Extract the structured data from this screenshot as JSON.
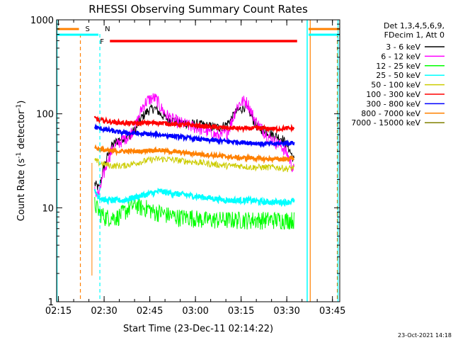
{
  "chart_data": {
    "type": "line",
    "title": "RHESSI Observing Summary Count Rates",
    "xlabel": "Start Time (23-Dec-11 02:14:22)",
    "ylabel_main": "Count Rate (s",
    "ylabel_sup1": "-1",
    "ylabel_mid": " detector",
    "ylabel_sup2": "-1",
    "ylabel_end": ")",
    "yscale": "log",
    "ylim": [
      1,
      1000
    ],
    "xlim_minutes": [
      0,
      93
    ],
    "x_ticks": [
      {
        "label": "02:15",
        "minute": 0.6
      },
      {
        "label": "02:30",
        "minute": 15.6
      },
      {
        "label": "02:45",
        "minute": 30.6
      },
      {
        "label": "03:00",
        "minute": 45.6
      },
      {
        "label": "03:15",
        "minute": 60.6
      },
      {
        "label": "03:30",
        "minute": 75.6
      },
      {
        "label": "03:45",
        "minute": 90.6
      }
    ],
    "y_ticks": [
      {
        "label": "1",
        "value": 1
      },
      {
        "label": "10",
        "value": 10
      },
      {
        "label": "100",
        "value": 100
      },
      {
        "label": "1000",
        "value": 1000
      }
    ],
    "legend_header": [
      "Det 1,3,4,5,6,9,",
      "FDecim 1, Att 0"
    ],
    "series": [
      {
        "name": "3 - 6 keV",
        "color": "#000000",
        "x": [
          12.5,
          14,
          16,
          18,
          20,
          22,
          24,
          26,
          27,
          28,
          29,
          30,
          31,
          32,
          33,
          34,
          35,
          36,
          38,
          40,
          42,
          44,
          46,
          48,
          50,
          52,
          54,
          56,
          57,
          58,
          59,
          60,
          61,
          62,
          63,
          64,
          65,
          66,
          67,
          68,
          69,
          70,
          72,
          74,
          76,
          77,
          78
        ],
        "values": [
          18,
          16,
          30,
          45,
          52,
          56,
          60,
          68,
          80,
          92,
          100,
          108,
          112,
          115,
          110,
          100,
          95,
          90,
          85,
          82,
          80,
          78,
          78,
          76,
          74,
          72,
          72,
          78,
          85,
          95,
          105,
          110,
          115,
          120,
          110,
          95,
          80,
          72,
          70,
          68,
          65,
          62,
          58,
          55,
          45,
          38,
          32
        ]
      },
      {
        "name": "6 - 12 keV",
        "color": "#ff00ff",
        "x": [
          12.5,
          14,
          16,
          18,
          20,
          22,
          24,
          26,
          27,
          28,
          29,
          30,
          31,
          32,
          33,
          34,
          35,
          36,
          38,
          40,
          42,
          44,
          46,
          48,
          50,
          52,
          54,
          56,
          57,
          58,
          59,
          60,
          61,
          62,
          63,
          64,
          65,
          66,
          67,
          68,
          69,
          70,
          72,
          74,
          76,
          77,
          78
        ],
        "values": [
          15,
          14,
          26,
          40,
          48,
          54,
          60,
          75,
          92,
          115,
          130,
          140,
          145,
          148,
          140,
          120,
          108,
          98,
          88,
          82,
          78,
          74,
          72,
          68,
          64,
          60,
          58,
          64,
          75,
          92,
          115,
          128,
          135,
          138,
          125,
          105,
          88,
          78,
          72,
          66,
          60,
          55,
          50,
          45,
          36,
          30,
          25
        ]
      },
      {
        "name": "12 - 25 keV",
        "color": "#00ff00",
        "x": [
          12.5,
          14,
          16,
          18,
          20,
          22,
          24,
          26,
          28,
          30,
          32,
          34,
          36,
          40,
          44,
          48,
          52,
          56,
          60,
          64,
          68,
          72,
          76,
          78
        ],
        "values": [
          11,
          9,
          8,
          8,
          8,
          9,
          10,
          11,
          10,
          10,
          9,
          9,
          8.5,
          8,
          8,
          7.5,
          7.5,
          7.5,
          7.5,
          7.5,
          7.5,
          7.5,
          7.5,
          7.5
        ]
      },
      {
        "name": "25 - 50 keV",
        "color": "#00ffff",
        "x": [
          12.5,
          14,
          16,
          18,
          20,
          22,
          24,
          26,
          28,
          30,
          32,
          34,
          36,
          40,
          44,
          48,
          52,
          56,
          60,
          64,
          68,
          72,
          76,
          78
        ],
        "values": [
          15,
          13,
          12,
          12,
          12,
          12,
          12.5,
          13,
          13.5,
          14,
          14.5,
          15,
          14.5,
          14,
          13.5,
          13,
          12.5,
          12,
          12,
          12,
          11.5,
          11.5,
          11.5,
          12
        ]
      },
      {
        "name": "50 - 100 keV",
        "color": "#cccc00",
        "x": [
          12.5,
          14,
          16,
          18,
          20,
          22,
          24,
          26,
          28,
          30,
          32,
          34,
          36,
          40,
          44,
          48,
          52,
          56,
          60,
          64,
          68,
          72,
          76,
          78
        ],
        "values": [
          32,
          30,
          29,
          28,
          28,
          28,
          29,
          30,
          31,
          32,
          33,
          33,
          33,
          32,
          31,
          30,
          29,
          28,
          28,
          27,
          27,
          27,
          26,
          27
        ]
      },
      {
        "name": "100 - 300 keV",
        "color": "#ff0000",
        "x": [
          12.5,
          14,
          16,
          18,
          20,
          22,
          24,
          26,
          28,
          30,
          32,
          34,
          36,
          40,
          44,
          48,
          52,
          56,
          60,
          64,
          68,
          72,
          76,
          78
        ],
        "values": [
          90,
          86,
          84,
          82,
          81,
          80,
          79,
          79,
          80,
          80,
          80,
          80,
          79,
          77,
          76,
          74,
          72,
          71,
          70,
          70,
          70,
          69,
          70,
          70
        ]
      },
      {
        "name": "300 - 800 keV",
        "color": "#0000ff",
        "x": [
          12.5,
          14,
          16,
          18,
          20,
          22,
          24,
          26,
          28,
          30,
          32,
          34,
          36,
          40,
          44,
          48,
          52,
          56,
          60,
          64,
          68,
          72,
          76,
          78
        ],
        "values": [
          72,
          70,
          68,
          66,
          64,
          63,
          62,
          62,
          61,
          61,
          60,
          60,
          59,
          57,
          55,
          53,
          52,
          51,
          50,
          49,
          48,
          48,
          49,
          49
        ]
      },
      {
        "name": "800 - 7000 keV",
        "color": "#ff8000",
        "x": [
          12.5,
          14,
          16,
          18,
          20,
          22,
          24,
          26,
          28,
          30,
          32,
          34,
          36,
          40,
          44,
          48,
          52,
          56,
          60,
          64,
          68,
          72,
          76,
          78
        ],
        "values": [
          44,
          42,
          41,
          40,
          40,
          40,
          40,
          40,
          40,
          41,
          41,
          41,
          40,
          39,
          38,
          37,
          36,
          35,
          34,
          34,
          33,
          33,
          33,
          34
        ]
      },
      {
        "name": "7000 - 15000 keV",
        "color": "#808000",
        "x": [],
        "values": []
      }
    ],
    "annotations": [
      {
        "label": "S",
        "color": "#ff8000",
        "minute": 7.8,
        "style": "dashed-vertical"
      },
      {
        "label": "N",
        "color": "#00ffff",
        "minute": 14.2,
        "style": "dashed-vertical"
      },
      {
        "label": "F",
        "color": "#ff0000",
        "start_minute": 17.5,
        "end_minute": 79
      }
    ],
    "timestamp": "23-Oct-2021 14:18"
  }
}
